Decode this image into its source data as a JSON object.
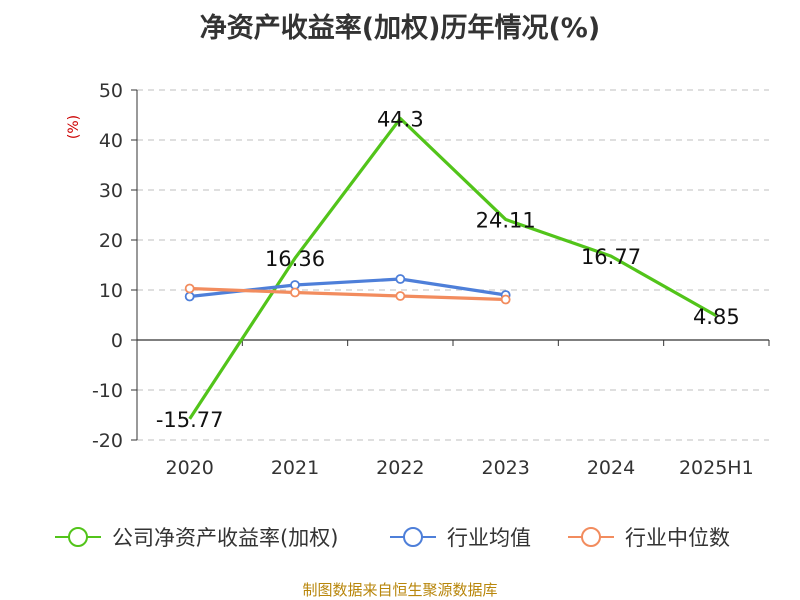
{
  "chart_data": {
    "type": "line",
    "title": "净资产收益率(加权)历年情况(%)",
    "ylabel": "(%)",
    "xlabel": "",
    "categories": [
      "2020",
      "2021",
      "2022",
      "2023",
      "2024",
      "2025H1"
    ],
    "ylim": [
      -20,
      50
    ],
    "yticks": [
      -20,
      -10,
      0,
      10,
      20,
      30,
      40,
      50
    ],
    "grid": true,
    "legend_position": "bottom",
    "series": [
      {
        "name": "公司净资产收益率(加权)",
        "color": "#52c41a",
        "values": [
          -15.77,
          16.36,
          44.3,
          24.11,
          16.77,
          4.85
        ],
        "labels": [
          "-15.77",
          "16.36",
          "44.3",
          "24.11",
          "16.77",
          "4.85"
        ],
        "show_markers": false
      },
      {
        "name": "行业均值",
        "color": "#4e7fd9",
        "values": [
          8.7,
          11.0,
          12.2,
          9.0,
          null,
          null
        ],
        "show_markers": true
      },
      {
        "name": "行业中位数",
        "color": "#f28c5e",
        "values": [
          10.3,
          9.5,
          8.8,
          8.1,
          null,
          null
        ],
        "show_markers": true
      }
    ]
  },
  "ylabel_color": "#cc0000",
  "source": "制图数据来自恒生聚源数据库"
}
